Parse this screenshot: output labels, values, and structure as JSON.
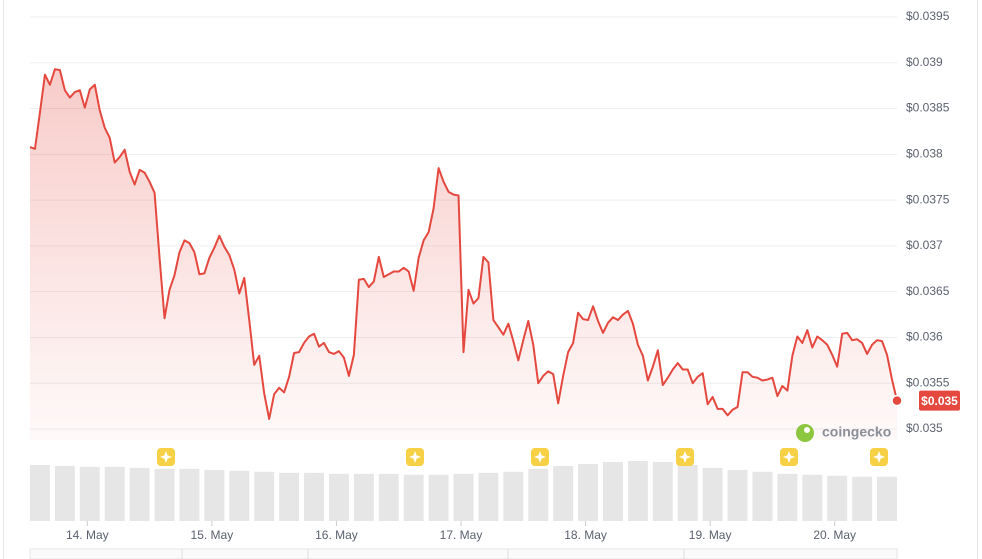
{
  "chart_data": {
    "type": "line",
    "x": [
      13.54,
      13.58,
      13.62,
      13.66,
      13.7,
      13.74,
      13.78,
      13.82,
      13.86,
      13.9,
      13.94,
      13.98,
      14.02,
      14.06,
      14.1,
      14.14,
      14.18,
      14.22,
      14.26,
      14.3,
      14.34,
      14.38,
      14.42,
      14.46,
      14.5,
      14.54,
      14.58,
      14.62,
      14.66,
      14.7,
      14.74,
      14.78,
      14.82,
      14.86,
      14.9,
      14.94,
      14.98,
      15.02,
      15.06,
      15.1,
      15.14,
      15.18,
      15.22,
      15.26,
      15.3,
      15.34,
      15.38,
      15.42,
      15.46,
      15.5,
      15.54,
      15.58,
      15.62,
      15.66,
      15.7,
      15.74,
      15.78,
      15.82,
      15.86,
      15.9,
      15.94,
      15.98,
      16.02,
      16.06,
      16.1,
      16.14,
      16.18,
      16.22,
      16.26,
      16.3,
      16.34,
      16.38,
      16.42,
      16.46,
      16.5,
      16.54,
      16.58,
      16.62,
      16.66,
      16.7,
      16.74,
      16.78,
      16.82,
      16.86,
      16.9,
      16.94,
      16.98,
      17.02,
      17.06,
      17.1,
      17.14,
      17.18,
      17.22,
      17.26,
      17.3,
      17.34,
      17.38,
      17.42,
      17.46,
      17.5,
      17.54,
      17.58,
      17.62,
      17.66,
      17.7,
      17.74,
      17.78,
      17.82,
      17.86,
      17.9,
      17.94,
      17.98,
      18.02,
      18.06,
      18.1,
      18.14,
      18.18,
      18.22,
      18.26,
      18.3,
      18.34,
      18.38,
      18.42,
      18.46,
      18.5,
      18.54,
      18.58,
      18.62,
      18.66,
      18.7,
      18.74,
      18.78,
      18.82,
      18.86,
      18.9,
      18.94,
      18.98,
      19.02,
      19.06,
      19.1,
      19.14,
      19.18,
      19.22,
      19.26,
      19.3,
      19.34,
      19.38,
      19.42,
      19.46,
      19.5,
      19.54,
      19.58,
      19.62,
      19.66,
      19.7,
      19.74,
      19.78,
      19.82,
      19.86,
      19.9,
      19.94,
      19.98,
      20.02,
      20.06,
      20.1,
      20.14,
      20.18,
      20.22,
      20.26,
      20.3,
      20.34,
      20.38,
      20.42,
      20.46,
      20.5
    ],
    "series": [
      {
        "color": "#e5483f",
        "values": [
          0.03808,
          0.03806,
          0.03846,
          0.03887,
          0.03876,
          0.03893,
          0.03892,
          0.0387,
          0.03862,
          0.03868,
          0.0387,
          0.03851,
          0.03871,
          0.03876,
          0.03848,
          0.03829,
          0.03818,
          0.03791,
          0.03797,
          0.03805,
          0.03781,
          0.03767,
          0.03783,
          0.0378,
          0.0377,
          0.03758,
          0.03687,
          0.03621,
          0.03652,
          0.03668,
          0.03693,
          0.03706,
          0.03703,
          0.03693,
          0.03669,
          0.0367,
          0.03687,
          0.03698,
          0.03711,
          0.03699,
          0.0369,
          0.03674,
          0.03648,
          0.03665,
          0.03619,
          0.0357,
          0.0358,
          0.03539,
          0.03511,
          0.03538,
          0.03545,
          0.0354,
          0.03557,
          0.03583,
          0.03584,
          0.03594,
          0.03601,
          0.03604,
          0.0359,
          0.03594,
          0.03584,
          0.03582,
          0.03585,
          0.03578,
          0.03558,
          0.03581,
          0.03663,
          0.03664,
          0.03655,
          0.03661,
          0.03688,
          0.03666,
          0.03669,
          0.03672,
          0.03672,
          0.03676,
          0.03672,
          0.03651,
          0.03687,
          0.03706,
          0.03715,
          0.03741,
          0.03785,
          0.0377,
          0.03759,
          0.03756,
          0.03755,
          0.03584,
          0.03652,
          0.03637,
          0.03643,
          0.03688,
          0.03682,
          0.03619,
          0.03611,
          0.03603,
          0.03615,
          0.03596,
          0.03575,
          0.03597,
          0.03618,
          0.03592,
          0.0355,
          0.03558,
          0.03563,
          0.0356,
          0.03528,
          0.03558,
          0.03584,
          0.03594,
          0.03627,
          0.0362,
          0.03619,
          0.03634,
          0.03618,
          0.03605,
          0.03616,
          0.03622,
          0.03619,
          0.03625,
          0.03629,
          0.03615,
          0.03592,
          0.0358,
          0.03553,
          0.03568,
          0.03586,
          0.03548,
          0.03556,
          0.03565,
          0.03572,
          0.03565,
          0.03565,
          0.0355,
          0.03557,
          0.03561,
          0.03527,
          0.03535,
          0.03522,
          0.03522,
          0.03515,
          0.03521,
          0.03524,
          0.03562,
          0.03562,
          0.03557,
          0.03556,
          0.03553,
          0.03554,
          0.03556,
          0.03536,
          0.03547,
          0.03542,
          0.0358,
          0.03601,
          0.03594,
          0.03608,
          0.03589,
          0.03601,
          0.03597,
          0.03592,
          0.03581,
          0.03568,
          0.03604,
          0.03605,
          0.03597,
          0.03598,
          0.03594,
          0.03582,
          0.03592,
          0.03597,
          0.03596,
          0.03581,
          0.03554,
          0.03531
        ]
      }
    ],
    "last_label": "$0.035",
    "xlim": [
      13.54,
      20.5
    ],
    "xticks": [
      {
        "value": 14,
        "label": "14. May"
      },
      {
        "value": 15,
        "label": "15. May"
      },
      {
        "value": 16,
        "label": "16. May"
      },
      {
        "value": 17,
        "label": "17. May"
      },
      {
        "value": 18,
        "label": "18. May"
      },
      {
        "value": 19,
        "label": "19. May"
      },
      {
        "value": 20,
        "label": "20. May"
      }
    ],
    "ylim": [
      0.035,
      0.0395
    ],
    "yticks": [
      {
        "value": 0.035,
        "label": "$0.035"
      },
      {
        "value": 0.0355,
        "label": "$0.0355"
      },
      {
        "value": 0.036,
        "label": "$0.036"
      },
      {
        "value": 0.0365,
        "label": "$0.0365"
      },
      {
        "value": 0.037,
        "label": "$0.037"
      },
      {
        "value": 0.0375,
        "label": "$0.0375"
      },
      {
        "value": 0.038,
        "label": "$0.038"
      },
      {
        "value": 0.0385,
        "label": "$0.0385"
      },
      {
        "value": 0.039,
        "label": "$0.039"
      },
      {
        "value": 0.0395,
        "label": "$0.0395"
      }
    ],
    "grid": true,
    "volume": {
      "color": "#e6e6e6",
      "x": [
        13.54,
        13.74,
        13.94,
        14.14,
        14.34,
        14.54,
        14.74,
        14.94,
        15.14,
        15.34,
        15.54,
        15.74,
        15.94,
        16.14,
        16.34,
        16.54,
        16.74,
        16.94,
        17.14,
        17.34,
        17.54,
        17.74,
        17.94,
        18.14,
        18.34,
        18.54,
        18.74,
        18.94,
        19.14,
        19.34,
        19.54,
        19.74,
        19.94,
        20.14,
        20.34
      ],
      "values": [
        57,
        56,
        55,
        55,
        54,
        53,
        53,
        52,
        51,
        50,
        49,
        49,
        48,
        48,
        48,
        47,
        47,
        48,
        49,
        50,
        53,
        56,
        58,
        60,
        61,
        60,
        57,
        54,
        52,
        50,
        48,
        47,
        46,
        45,
        45
      ]
    },
    "watermark": "coingecko"
  }
}
